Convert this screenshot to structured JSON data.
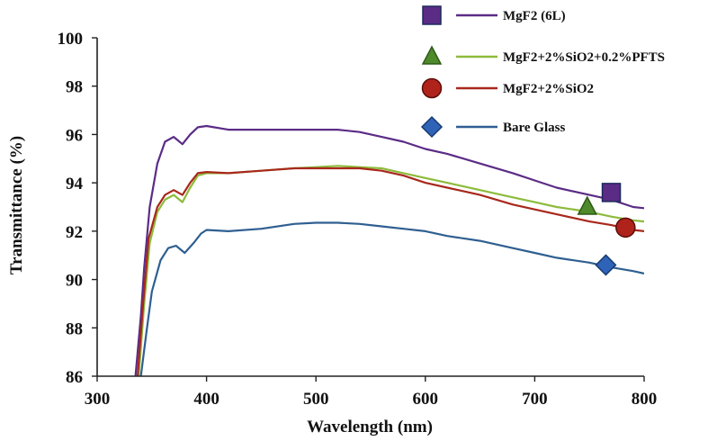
{
  "chart_data": {
    "type": "line",
    "xlabel": "Wavelength (nm)",
    "ylabel": "Transmittance (%)",
    "xlim": [
      300,
      800
    ],
    "ylim": [
      86,
      100
    ],
    "xticks": [
      300,
      400,
      500,
      600,
      700,
      800
    ],
    "yticks": [
      86,
      88,
      90,
      92,
      94,
      96,
      98,
      100
    ],
    "grid": false,
    "legend_position": "top-right",
    "series": [
      {
        "name": "MgF2 (6L)",
        "color": "#5b2c86",
        "marker": "square",
        "marker_point": [
          770,
          93.6
        ],
        "x": [
          335,
          340,
          343,
          348,
          355,
          362,
          370,
          378,
          385,
          392,
          400,
          420,
          450,
          480,
          500,
          520,
          540,
          560,
          580,
          600,
          620,
          650,
          680,
          700,
          720,
          750,
          770,
          790,
          800
        ],
        "y": [
          86,
          88.5,
          90.5,
          93,
          94.8,
          95.7,
          95.9,
          95.6,
          96.0,
          96.3,
          96.35,
          96.2,
          96.2,
          96.2,
          96.2,
          96.2,
          96.1,
          95.9,
          95.7,
          95.4,
          95.2,
          94.8,
          94.4,
          94.1,
          93.8,
          93.5,
          93.3,
          93.0,
          92.95
        ]
      },
      {
        "name": "MgF2+2%SiO2+0.2%PFTS",
        "color": "#8dbb3c",
        "marker": "triangle",
        "marker_point": [
          748,
          93.0
        ],
        "x": [
          338,
          343,
          348,
          355,
          362,
          370,
          378,
          385,
          392,
          400,
          420,
          450,
          480,
          500,
          520,
          540,
          560,
          580,
          600,
          620,
          650,
          680,
          700,
          720,
          750,
          770,
          790,
          800
        ],
        "y": [
          86,
          89,
          91.5,
          92.8,
          93.3,
          93.5,
          93.2,
          93.8,
          94.3,
          94.4,
          94.4,
          94.5,
          94.6,
          94.65,
          94.7,
          94.65,
          94.6,
          94.4,
          94.2,
          94.0,
          93.7,
          93.4,
          93.2,
          93.0,
          92.8,
          92.6,
          92.45,
          92.4
        ]
      },
      {
        "name": "MgF2+2%SiO2",
        "color": "#a8281c",
        "marker": "circle",
        "marker_point": [
          783,
          92.15
        ],
        "x": [
          337,
          342,
          347,
          355,
          362,
          370,
          378,
          385,
          392,
          400,
          420,
          450,
          480,
          500,
          520,
          540,
          560,
          580,
          600,
          620,
          650,
          680,
          700,
          720,
          750,
          770,
          790,
          800
        ],
        "y": [
          86,
          89,
          91.7,
          93.0,
          93.5,
          93.7,
          93.5,
          94.0,
          94.4,
          94.45,
          94.4,
          94.5,
          94.6,
          94.6,
          94.6,
          94.6,
          94.5,
          94.3,
          94.0,
          93.8,
          93.5,
          93.1,
          92.9,
          92.7,
          92.4,
          92.25,
          92.05,
          92.0
        ]
      },
      {
        "name": "Bare Glass",
        "color": "#2f5f91",
        "marker": "diamond",
        "marker_point": [
          765,
          90.6
        ],
        "x": [
          340,
          345,
          350,
          358,
          365,
          372,
          380,
          388,
          395,
          400,
          420,
          450,
          480,
          500,
          520,
          540,
          560,
          580,
          600,
          620,
          650,
          680,
          700,
          720,
          750,
          770,
          790,
          800
        ],
        "y": [
          86,
          87.8,
          89.5,
          90.8,
          91.3,
          91.4,
          91.1,
          91.5,
          91.9,
          92.05,
          92.0,
          92.1,
          92.3,
          92.35,
          92.35,
          92.3,
          92.2,
          92.1,
          92.0,
          91.8,
          91.6,
          91.3,
          91.1,
          90.9,
          90.7,
          90.5,
          90.35,
          90.25
        ]
      }
    ]
  }
}
